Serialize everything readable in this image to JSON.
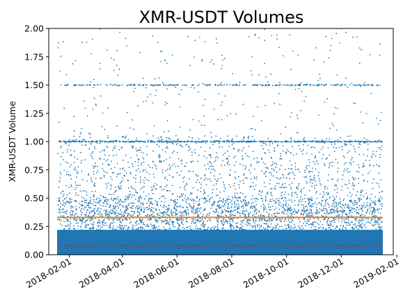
{
  "chart_data": {
    "type": "scatter",
    "title": "XMR-USDT Volumes",
    "xlabel": "",
    "ylabel": "XMR-USDT Volume",
    "xlim": [
      "2018-01-09",
      "2019-01-28"
    ],
    "ylim": [
      0,
      2.0
    ],
    "data_range": [
      "2018-01-19",
      "2019-01-16"
    ],
    "x_ticks": [
      "2018-02-01",
      "2018-04-01",
      "2018-06-01",
      "2018-08-01",
      "2018-10-01",
      "2018-12-01",
      "2019-02-01"
    ],
    "y_ticks": [
      "0.00",
      "0.25",
      "0.50",
      "0.75",
      "1.00",
      "1.25",
      "1.50",
      "1.75",
      "2.00"
    ],
    "grid": false,
    "legend": "none",
    "point_color": "#1f77b4",
    "reference_lines": [
      {
        "value": 0.33,
        "style": "solid",
        "color": "#ff7f0e"
      },
      {
        "value": 0.08,
        "style": "dashed",
        "color": "#d62728"
      }
    ],
    "visible_clusters": [
      1.0,
      1.5
    ]
  }
}
